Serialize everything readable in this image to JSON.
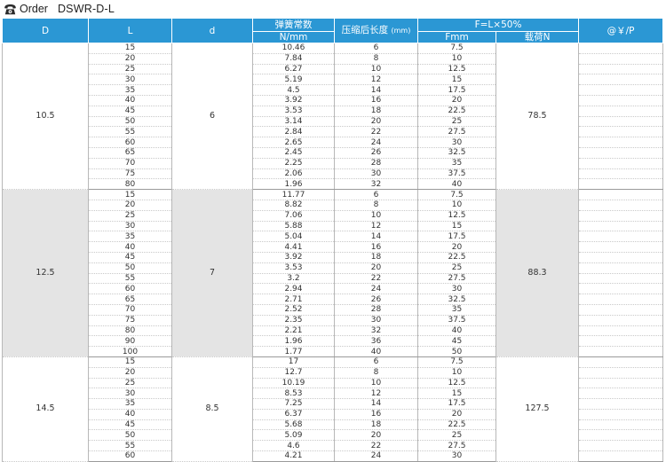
{
  "header": {
    "order_label": "Order",
    "product_code": "DSWR-D-L"
  },
  "columns": {
    "D": "D",
    "L": "L",
    "d": "d",
    "spring_const": "弹簧常数",
    "spring_const_unit": "N/mm",
    "compressed_len": "压缩后长度",
    "compressed_unit": "(mm)",
    "load_group": "F=L×50%",
    "fmm": "Fmm",
    "load_n": "载荷N",
    "price": "@￥/P"
  },
  "groups": [
    {
      "D": "10.5",
      "d": "6",
      "load_n": "78.5",
      "rows": [
        {
          "L": "15",
          "k": "10.46",
          "comp": "6",
          "fmm": "7.5"
        },
        {
          "L": "20",
          "k": "7.84",
          "comp": "8",
          "fmm": "10"
        },
        {
          "L": "25",
          "k": "6.27",
          "comp": "10",
          "fmm": "12.5"
        },
        {
          "L": "30",
          "k": "5.19",
          "comp": "12",
          "fmm": "15"
        },
        {
          "L": "35",
          "k": "4.5",
          "comp": "14",
          "fmm": "17.5"
        },
        {
          "L": "40",
          "k": "3.92",
          "comp": "16",
          "fmm": "20"
        },
        {
          "L": "45",
          "k": "3.53",
          "comp": "18",
          "fmm": "22.5"
        },
        {
          "L": "50",
          "k": "3.14",
          "comp": "20",
          "fmm": "25"
        },
        {
          "L": "55",
          "k": "2.84",
          "comp": "22",
          "fmm": "27.5"
        },
        {
          "L": "60",
          "k": "2.65",
          "comp": "24",
          "fmm": "30"
        },
        {
          "L": "65",
          "k": "2.45",
          "comp": "26",
          "fmm": "32.5"
        },
        {
          "L": "70",
          "k": "2.25",
          "comp": "28",
          "fmm": "35"
        },
        {
          "L": "75",
          "k": "2.06",
          "comp": "30",
          "fmm": "37.5"
        },
        {
          "L": "80",
          "k": "1.96",
          "comp": "32",
          "fmm": "40"
        }
      ]
    },
    {
      "D": "12.5",
      "d": "7",
      "load_n": "88.3",
      "rows": [
        {
          "L": "15",
          "k": "11.77",
          "comp": "6",
          "fmm": "7.5"
        },
        {
          "L": "20",
          "k": "8.82",
          "comp": "8",
          "fmm": "10"
        },
        {
          "L": "25",
          "k": "7.06",
          "comp": "10",
          "fmm": "12.5"
        },
        {
          "L": "30",
          "k": "5.88",
          "comp": "12",
          "fmm": "15"
        },
        {
          "L": "35",
          "k": "5.04",
          "comp": "14",
          "fmm": "17.5"
        },
        {
          "L": "40",
          "k": "4.41",
          "comp": "16",
          "fmm": "20"
        },
        {
          "L": "45",
          "k": "3.92",
          "comp": "18",
          "fmm": "22.5"
        },
        {
          "L": "50",
          "k": "3.53",
          "comp": "20",
          "fmm": "25"
        },
        {
          "L": "55",
          "k": "3.2",
          "comp": "22",
          "fmm": "27.5"
        },
        {
          "L": "60",
          "k": "2.94",
          "comp": "24",
          "fmm": "30"
        },
        {
          "L": "65",
          "k": "2.71",
          "comp": "26",
          "fmm": "32.5"
        },
        {
          "L": "70",
          "k": "2.52",
          "comp": "28",
          "fmm": "35"
        },
        {
          "L": "75",
          "k": "2.35",
          "comp": "30",
          "fmm": "37.5"
        },
        {
          "L": "80",
          "k": "2.21",
          "comp": "32",
          "fmm": "40"
        },
        {
          "L": "90",
          "k": "1.96",
          "comp": "36",
          "fmm": "45"
        },
        {
          "L": "100",
          "k": "1.77",
          "comp": "40",
          "fmm": "50"
        }
      ]
    },
    {
      "D": "14.5",
      "d": "8.5",
      "load_n": "127.5",
      "rows": [
        {
          "L": "15",
          "k": "17",
          "comp": "6",
          "fmm": "7.5"
        },
        {
          "L": "20",
          "k": "12.7",
          "comp": "8",
          "fmm": "10"
        },
        {
          "L": "25",
          "k": "10.19",
          "comp": "10",
          "fmm": "12.5"
        },
        {
          "L": "30",
          "k": "8.53",
          "comp": "12",
          "fmm": "15"
        },
        {
          "L": "35",
          "k": "7.25",
          "comp": "14",
          "fmm": "17.5"
        },
        {
          "L": "40",
          "k": "6.37",
          "comp": "16",
          "fmm": "20"
        },
        {
          "L": "45",
          "k": "5.68",
          "comp": "18",
          "fmm": "22.5"
        },
        {
          "L": "50",
          "k": "5.09",
          "comp": "20",
          "fmm": "25"
        },
        {
          "L": "55",
          "k": "4.6",
          "comp": "22",
          "fmm": "27.5"
        },
        {
          "L": "60",
          "k": "4.21",
          "comp": "24",
          "fmm": "30"
        }
      ]
    }
  ]
}
